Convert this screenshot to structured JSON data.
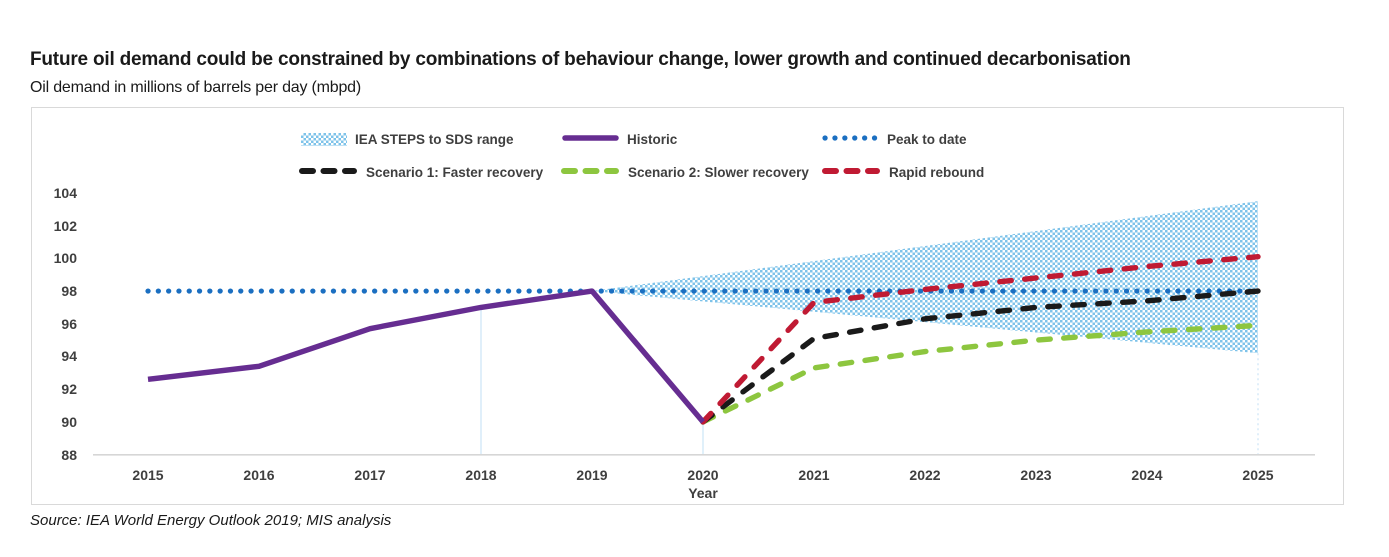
{
  "header": {
    "title": "Future oil demand could be constrained by combinations of behaviour change, lower growth and continued decarbonisation",
    "subtitle": "Oil demand in millions of barrels per day (mbpd)"
  },
  "footer": {
    "source": "Source: IEA World Energy Outlook 2019; MIS analysis"
  },
  "legend": {
    "items": [
      {
        "label": "IEA STEPS to SDS range",
        "swatch": "band",
        "color": "#7ec3ea"
      },
      {
        "label": "Historic",
        "swatch": "solid",
        "color": "#662d91"
      },
      {
        "label": "Peak to date",
        "swatch": "dotted",
        "color": "#1b6fc1"
      },
      {
        "label": "Scenario 1: Faster recovery",
        "swatch": "dashed",
        "color": "#1a1a1a"
      },
      {
        "label": "Scenario 2: Slower recovery",
        "swatch": "dashed",
        "color": "#8dc63f"
      },
      {
        "label": "Rapid rebound",
        "swatch": "dashed",
        "color": "#c01a33"
      }
    ]
  },
  "chart_data": {
    "type": "line",
    "title": "Oil demand in millions of barrels per day (mbpd)",
    "xlabel": "Year",
    "ylabel": "",
    "ylim": [
      88,
      104
    ],
    "grid": false,
    "legend_position": "top",
    "x": [
      2015,
      2016,
      2017,
      2018,
      2019,
      2020,
      2021,
      2022,
      2023,
      2024,
      2025
    ],
    "x_ticklabels": [
      "2015",
      "2016",
      "2017",
      "2018",
      "2019",
      "2020",
      "2021",
      "2022",
      "2023",
      "2024",
      "2025"
    ],
    "y_ticks": [
      88,
      90,
      92,
      94,
      96,
      98,
      100,
      102,
      104
    ],
    "series": [
      {
        "name": "Historic",
        "color": "#662d91",
        "style": "solid",
        "z": 5,
        "x": [
          2015,
          2016,
          2017,
          2018,
          2019,
          2020
        ],
        "values": [
          92.6,
          93.4,
          95.7,
          97.0,
          98.0,
          90.0
        ]
      },
      {
        "name": "Peak to date",
        "color": "#1b6fc1",
        "style": "dotted",
        "z": 1,
        "x": [
          2015,
          2025
        ],
        "values": [
          98.0,
          98.0
        ]
      },
      {
        "name": "Scenario 1: Faster recovery",
        "color": "#1a1a1a",
        "style": "dashed",
        "z": 3,
        "x": [
          2020,
          2021,
          2022,
          2023,
          2024,
          2025
        ],
        "values": [
          90.0,
          95.1,
          96.3,
          97.0,
          97.4,
          98.0
        ]
      },
      {
        "name": "Scenario 2: Slower recovery",
        "color": "#8dc63f",
        "style": "dashed",
        "z": 2,
        "x": [
          2020,
          2021,
          2022,
          2023,
          2024,
          2025
        ],
        "values": [
          90.0,
          93.3,
          94.3,
          95.0,
          95.5,
          95.9
        ]
      },
      {
        "name": "Rapid rebound",
        "color": "#c01a33",
        "style": "dashed",
        "z": 4,
        "x": [
          2020,
          2021,
          2022,
          2023,
          2024,
          2025
        ],
        "values": [
          90.0,
          97.3,
          98.1,
          98.8,
          99.5,
          100.1
        ]
      }
    ],
    "band": {
      "name": "IEA STEPS to SDS range",
      "color": "#7ec3ea",
      "x": [
        2019,
        2025
      ],
      "upper": [
        98.0,
        103.5
      ],
      "lower": [
        98.0,
        94.2
      ]
    },
    "drop_lines": [
      {
        "x": 2018,
        "top": 97.0,
        "dotted": false
      },
      {
        "x": 2020,
        "top": 90.0,
        "dotted": false
      },
      {
        "x": 2025,
        "top": 94.2,
        "dotted": true
      }
    ]
  }
}
